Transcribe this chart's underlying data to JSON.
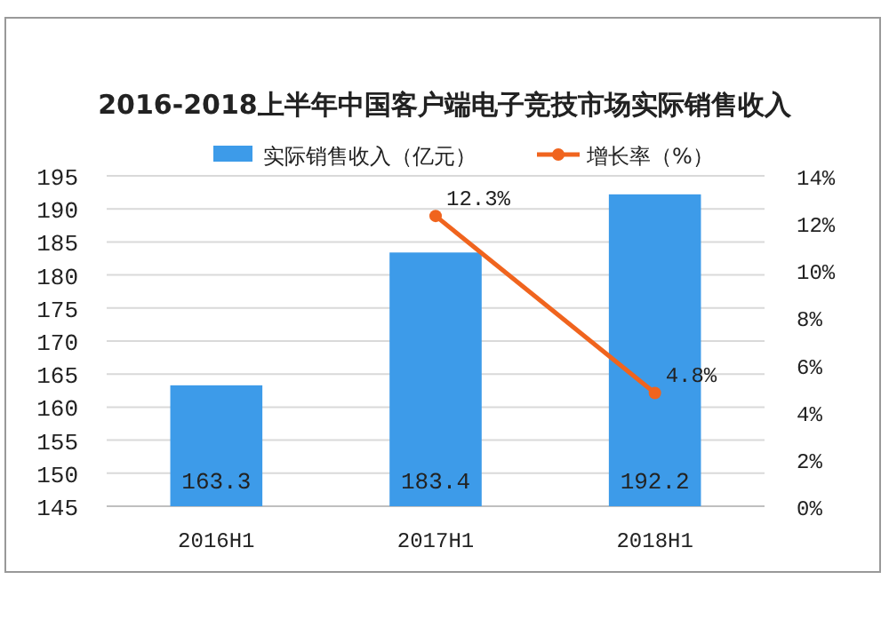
{
  "chart_data": {
    "type": "bar",
    "title": "2016-2018上半年中国客户端电子竞技市场实际销售收入",
    "categories": [
      "2016H1",
      "2017H1",
      "2018H1"
    ],
    "series": [
      {
        "name": "实际销售收入（亿元）",
        "color": "#3d9be9",
        "values": [
          163.3,
          183.4,
          192.2
        ],
        "value_labels": [
          "163.3",
          "183.4",
          "192.2"
        ]
      },
      {
        "name": "增长率（%）",
        "type": "line",
        "axis": "y2",
        "color": "#f0641e",
        "marker": "circle",
        "values": [
          null,
          12.3,
          4.8
        ],
        "value_labels": [
          null,
          "12.3%",
          "4.8%"
        ]
      }
    ],
    "ylim": [
      145,
      195
    ],
    "yticks": [
      145,
      150,
      155,
      160,
      165,
      170,
      175,
      180,
      185,
      190,
      195
    ],
    "y2lim": [
      0,
      14
    ],
    "y2ticks": [
      {
        "value": 0,
        "label": "0%"
      },
      {
        "value": 2,
        "label": "2%"
      },
      {
        "value": 4,
        "label": "4%"
      },
      {
        "value": 6,
        "label": "6%"
      },
      {
        "value": 8,
        "label": "8%"
      },
      {
        "value": 10,
        "label": "10%"
      },
      {
        "value": 12,
        "label": "12%"
      },
      {
        "value": 14,
        "label": "14%"
      }
    ],
    "grid": "y",
    "legend": "top"
  }
}
